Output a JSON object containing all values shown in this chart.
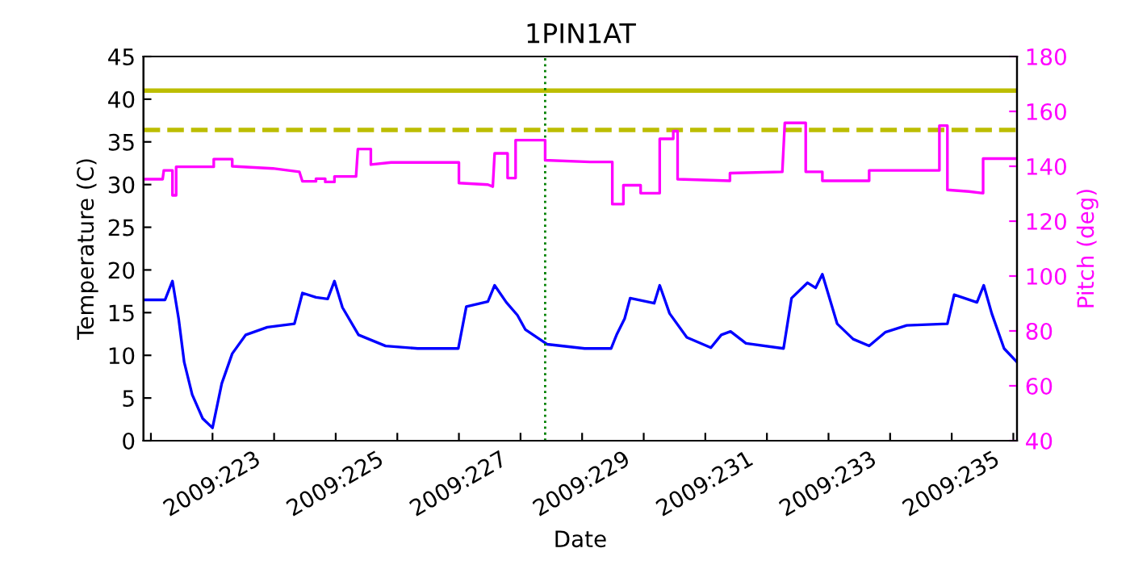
{
  "chart_data": {
    "type": "line",
    "title": "1PIN1AT",
    "xlabel": "Date",
    "ylabel": "Temperature (C)",
    "y2label": "Pitch (deg)",
    "xlim": [
      "2009-08-09T21:07",
      "2009-08-24T01:26"
    ],
    "xticks": [
      {
        "value": "2009-08-10",
        "label": null
      },
      {
        "value": "2009-08-11",
        "label": "2009:223"
      },
      {
        "value": "2009-08-12",
        "label": null
      },
      {
        "value": "2009-08-13",
        "label": "2009:225"
      },
      {
        "value": "2009-08-14",
        "label": null
      },
      {
        "value": "2009-08-15",
        "label": "2009:227"
      },
      {
        "value": "2009-08-16",
        "label": null
      },
      {
        "value": "2009-08-17",
        "label": "2009:229"
      },
      {
        "value": "2009-08-18",
        "label": null
      },
      {
        "value": "2009-08-19",
        "label": "2009:231"
      },
      {
        "value": "2009-08-20",
        "label": null
      },
      {
        "value": "2009-08-21",
        "label": "2009:233"
      },
      {
        "value": "2009-08-22",
        "label": null
      },
      {
        "value": "2009-08-23",
        "label": "2009:235"
      },
      {
        "value": "2009-08-24",
        "label": null
      }
    ],
    "ylim": [
      0,
      45
    ],
    "yticks": [
      0,
      5,
      10,
      15,
      20,
      25,
      30,
      35,
      40,
      45
    ],
    "y2lim": [
      40,
      180
    ],
    "y2ticks": [
      40,
      60,
      80,
      100,
      120,
      140,
      160,
      180
    ],
    "grid": false,
    "legend": false,
    "marker": "none",
    "line_style": "solid",
    "series": [
      {
        "color": "#0000ff",
        "x": [
          "2009-08-09T21:07",
          "2009-08-10T05:31",
          "2009-08-10T08:24",
          "2009-08-10T10:48",
          "2009-08-10T12:58",
          "2009-08-10T16:05",
          "2009-08-10T20:10",
          "2009-08-11T00:00",
          "2009-08-11T03:36",
          "2009-08-11T07:41",
          "2009-08-11T12:58",
          "2009-08-11T21:22",
          "2009-08-12T07:55",
          "2009-08-12T11:02",
          "2009-08-12T16:19",
          "2009-08-12T20:53",
          "2009-08-12T23:31",
          "2009-08-13T02:38",
          "2009-08-13T08:53",
          "2009-08-13T19:26",
          "2009-08-14T07:55",
          "2009-08-14T23:46",
          "2009-08-15T02:53",
          "2009-08-15T11:17",
          "2009-08-15T13:55",
          "2009-08-15T18:29",
          "2009-08-15T22:48",
          "2009-08-16T01:55",
          "2009-08-16T10:19",
          "2009-08-17T00:58",
          "2009-08-17T11:17",
          "2009-08-17T13:26",
          "2009-08-17T16:34",
          "2009-08-17T18:43",
          "2009-08-18T04:05",
          "2009-08-18T06:14",
          "2009-08-18T10:05",
          "2009-08-18T16:48",
          "2009-08-19T02:10",
          "2009-08-19T06:14",
          "2009-08-19T09:50",
          "2009-08-19T15:50",
          "2009-08-20T06:29",
          "2009-08-20T09:36",
          "2009-08-20T15:50",
          "2009-08-20T18:58",
          "2009-08-20T21:36",
          "2009-08-21T03:22",
          "2009-08-21T09:36",
          "2009-08-21T15:50",
          "2009-08-21T22:05",
          "2009-08-22T06:29",
          "2009-08-22T22:19",
          "2009-08-23T00:58",
          "2009-08-23T09:50",
          "2009-08-23T12:29",
          "2009-08-23T15:36",
          "2009-08-23T20:24",
          "2009-08-24T01:26"
        ],
        "values": [
          16.5,
          16.5,
          18.7,
          14.3,
          9.2,
          5.4,
          2.6,
          1.5,
          6.7,
          10.2,
          12.4,
          13.3,
          13.7,
          17.3,
          16.8,
          16.6,
          18.7,
          15.6,
          12.4,
          11.1,
          10.8,
          10.8,
          15.7,
          16.3,
          18.2,
          16.2,
          14.7,
          13.0,
          11.3,
          10.8,
          10.8,
          12.4,
          14.3,
          16.7,
          16.1,
          18.2,
          14.9,
          12.1,
          10.9,
          12.4,
          12.8,
          11.4,
          10.8,
          16.7,
          18.5,
          17.9,
          19.5,
          13.7,
          11.9,
          11.1,
          12.7,
          13.5,
          13.7,
          17.1,
          16.2,
          18.2,
          14.9,
          10.8,
          9.2
        ]
      },
      {
        "color": "#ff00ff",
        "axis": "y2",
        "x": [
          "2009-08-09T21:07",
          "2009-08-10T04:34",
          "2009-08-10T05:02",
          "2009-08-10T08:24",
          "2009-08-10T08:24",
          "2009-08-10T09:50",
          "2009-08-10T09:50",
          "2009-08-11T00:29",
          "2009-08-11T00:29",
          "2009-08-11T07:41",
          "2009-08-11T07:41",
          "2009-08-11T23:31",
          "2009-08-12T09:50",
          "2009-08-12T11:02",
          "2009-08-12T16:19",
          "2009-08-12T16:19",
          "2009-08-12T19:55",
          "2009-08-12T19:55",
          "2009-08-12T23:31",
          "2009-08-12T23:31",
          "2009-08-13T07:55",
          "2009-08-13T08:38",
          "2009-08-13T13:41",
          "2009-08-13T13:41",
          "2009-08-13T21:36",
          "2009-08-15T00:00",
          "2009-08-15T00:00",
          "2009-08-15T11:17",
          "2009-08-15T13:12",
          "2009-08-15T13:55",
          "2009-08-15T18:58",
          "2009-08-15T18:58",
          "2009-08-15T22:05",
          "2009-08-15T22:05",
          "2009-08-16T09:36",
          "2009-08-16T09:36",
          "2009-08-17T03:07",
          "2009-08-17T11:46",
          "2009-08-17T11:46",
          "2009-08-17T16:05",
          "2009-08-17T16:05",
          "2009-08-17T22:48",
          "2009-08-17T22:48",
          "2009-08-18T06:14",
          "2009-08-18T06:14",
          "2009-08-18T11:31",
          "2009-08-18T11:31",
          "2009-08-18T13:12",
          "2009-08-18T13:12",
          "2009-08-19T09:36",
          "2009-08-19T09:36",
          "2009-08-20T06:00",
          "2009-08-20T06:58",
          "2009-08-20T15:07",
          "2009-08-20T15:07",
          "2009-08-20T21:36",
          "2009-08-20T21:36",
          "2009-08-21T15:50",
          "2009-08-21T15:50",
          "2009-08-22T19:12",
          "2009-08-22T19:12",
          "2009-08-22T22:19",
          "2009-08-22T22:19",
          "2009-08-23T06:43",
          "2009-08-23T12:14",
          "2009-08-23T12:14",
          "2009-08-24T01:26"
        ],
        "values": [
          135.3,
          135.3,
          138.5,
          138.5,
          129.4,
          129.4,
          139.8,
          139.8,
          142.6,
          142.6,
          140.0,
          139.2,
          138.0,
          134.5,
          134.5,
          135.5,
          135.5,
          134.3,
          134.3,
          136.3,
          136.3,
          146.3,
          146.3,
          140.6,
          141.4,
          141.4,
          133.9,
          133.3,
          132.6,
          144.7,
          144.7,
          135.7,
          135.7,
          149.5,
          149.5,
          142.2,
          141.6,
          141.6,
          126.2,
          126.2,
          133.1,
          133.1,
          130.2,
          130.2,
          150.0,
          150.0,
          152.8,
          152.8,
          135.3,
          134.7,
          137.5,
          138.0,
          155.8,
          155.8,
          138.0,
          138.0,
          134.7,
          134.7,
          138.5,
          138.5,
          154.8,
          154.8,
          131.4,
          130.8,
          130.2,
          142.8,
          142.8
        ]
      }
    ],
    "ref_lines": [
      {
        "axis": "y",
        "value": 41,
        "color": "#bcbd00",
        "line_style": "solid"
      },
      {
        "axis": "y",
        "value": 36.4,
        "color": "#bcbd00",
        "line_style": "dashed"
      },
      {
        "axis": "x",
        "value": "2009-08-16T09:36",
        "color": "#008000",
        "line_style": "dotted"
      }
    ]
  }
}
